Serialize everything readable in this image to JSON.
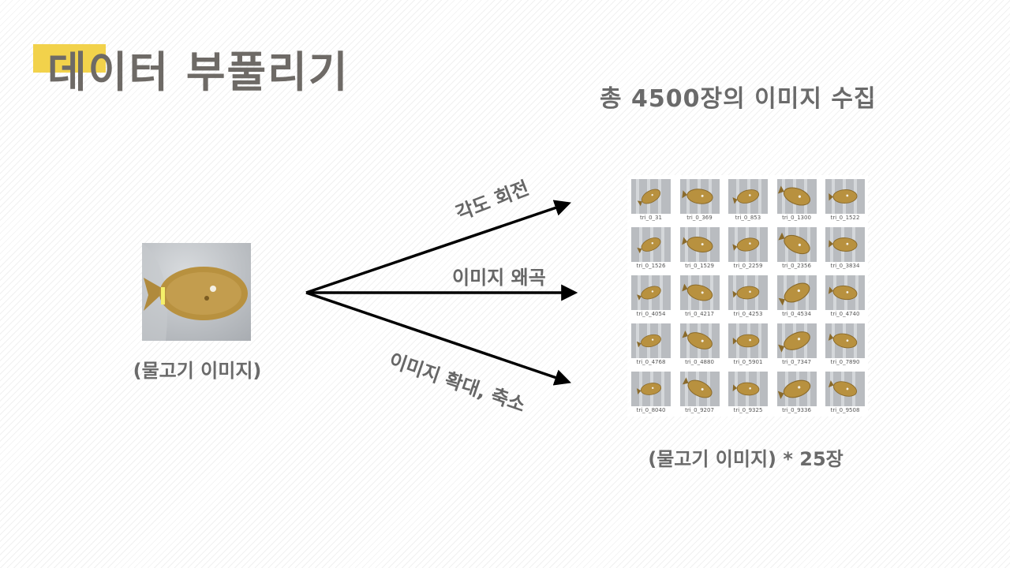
{
  "title": "데이터 부풀리기",
  "heading": "총 4500장의 이미지 수집",
  "source_caption": "(물고기 이미지)",
  "arrow_labels": {
    "rotate": "각도 회전",
    "distort": "이미지 왜곡",
    "scale": "이미지 확대, 축소"
  },
  "grid_caption": "(물고기 이미지) * 25장",
  "thumbnails": [
    "tri_0_31",
    "tri_0_369",
    "tri_0_853",
    "tri_0_1300",
    "tri_0_1522",
    "tri_0_1526",
    "tri_0_1529",
    "tri_0_2259",
    "tri_0_2356",
    "tri_0_3834",
    "tri_0_4054",
    "tri_0_4217",
    "tri_0_4253",
    "tri_0_4534",
    "tri_0_4740",
    "tri_0_4768",
    "tri_0_4880",
    "tri_0_5901",
    "tri_0_7347",
    "tri_0_7890",
    "tri_0_8040",
    "tri_0_9207",
    "tri_0_9325",
    "tri_0_9336",
    "tri_0_9508"
  ],
  "colors": {
    "accent": "#f2d24b",
    "fish": "#b8913f",
    "fish_dark": "#8a6a2a",
    "background_stone": "#b9bcc0"
  }
}
